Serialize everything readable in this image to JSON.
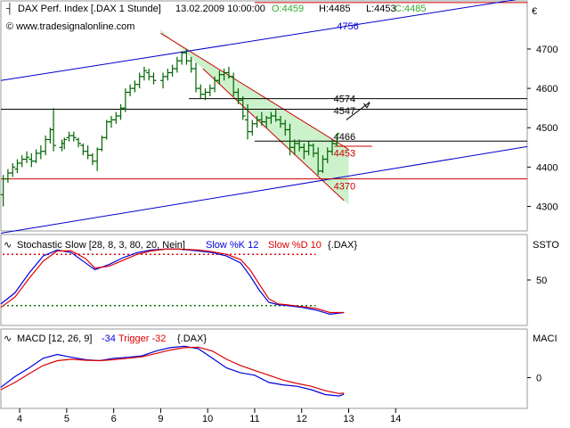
{
  "header": {
    "instrument": "DAX Perf. Index [.DAX  1 Stunde]",
    "datetime": "13.02.2009 10:00:00",
    "open": "O:4459",
    "high": "H:4485",
    "low": "L:4453",
    "close": "C:4485"
  },
  "watermark": "© www.tradesignalonline.com",
  "currency_symbol": "€",
  "colors": {
    "price_bar": "#006400",
    "channel": "#cc0000",
    "channel_fill": "#ccf2cc",
    "trendline": "#0000cc",
    "support": "#cc0000",
    "level": "#000000",
    "close_label": "#33aa33",
    "k_line": "#0000dd",
    "d_line": "#dd0000",
    "ob_dotted": "#dd0000",
    "os_dotted": "#007700"
  },
  "chart_data": [
    {
      "type": "candlestick",
      "panel": "price",
      "ylim": [
        4240,
        4820
      ],
      "yticks": [
        4300,
        4400,
        4500,
        4600,
        4700
      ],
      "xlim": [
        3.6,
        14.8
      ],
      "xticks": [
        {
          "label": "4",
          "x": 4
        },
        {
          "label": "5",
          "x": 5
        },
        {
          "label": "6",
          "x": 6
        },
        {
          "label": "9",
          "x": 7
        },
        {
          "label": "10",
          "x": 8
        },
        {
          "label": "11",
          "x": 9
        },
        {
          "label": "12",
          "x": 10
        },
        {
          "label": "13",
          "x": 11
        },
        {
          "label": "14",
          "x": 12
        }
      ],
      "bars": [
        [
          3.65,
          4330,
          4380,
          4300,
          4370
        ],
        [
          3.75,
          4370,
          4395,
          4360,
          4385
        ],
        [
          3.85,
          4385,
          4410,
          4375,
          4400
        ],
        [
          3.95,
          4395,
          4420,
          4385,
          4410
        ],
        [
          4.05,
          4410,
          4430,
          4400,
          4420
        ],
        [
          4.15,
          4420,
          4440,
          4410,
          4425
        ],
        [
          4.25,
          4420,
          4435,
          4400,
          4415
        ],
        [
          4.35,
          4415,
          4445,
          4410,
          4435
        ],
        [
          4.45,
          4435,
          4455,
          4420,
          4440
        ],
        [
          4.55,
          4440,
          4480,
          4430,
          4470
        ],
        [
          4.65,
          4470,
          4500,
          4460,
          4495
        ],
        [
          4.72,
          4495,
          4550,
          4440,
          4455
        ],
        [
          4.9,
          4450,
          4470,
          4440,
          4460
        ],
        [
          4.95,
          4460,
          4475,
          4445,
          4470
        ],
        [
          5.05,
          4475,
          4490,
          4465,
          4480
        ],
        [
          5.15,
          4480,
          4490,
          4465,
          4475
        ],
        [
          5.25,
          4470,
          4475,
          4450,
          4460
        ],
        [
          5.35,
          4455,
          4460,
          4430,
          4440
        ],
        [
          5.45,
          4440,
          4455,
          4420,
          4430
        ],
        [
          5.55,
          4430,
          4435,
          4405,
          4415
        ],
        [
          5.65,
          4415,
          4450,
          4390,
          4445
        ],
        [
          5.75,
          4445,
          4480,
          4440,
          4475
        ],
        [
          5.85,
          4475,
          4520,
          4470,
          4515
        ],
        [
          5.95,
          4515,
          4530,
          4500,
          4520
        ],
        [
          6.05,
          4520,
          4540,
          4510,
          4530
        ],
        [
          6.15,
          4530,
          4560,
          4520,
          4550
        ],
        [
          6.25,
          4550,
          4600,
          4540,
          4590
        ],
        [
          6.35,
          4590,
          4610,
          4580,
          4600
        ],
        [
          6.45,
          4600,
          4620,
          4590,
          4610
        ],
        [
          6.55,
          4610,
          4640,
          4600,
          4630
        ],
        [
          6.65,
          4630,
          4655,
          4620,
          4645
        ],
        [
          6.75,
          4640,
          4650,
          4620,
          4630
        ],
        [
          6.85,
          4630,
          4640,
          4610,
          4620
        ],
        [
          7.05,
          4620,
          4640,
          4600,
          4630
        ],
        [
          7.15,
          4630,
          4650,
          4620,
          4640
        ],
        [
          7.25,
          4640,
          4660,
          4630,
          4650
        ],
        [
          7.35,
          4650,
          4680,
          4640,
          4670
        ],
        [
          7.45,
          4670,
          4695,
          4660,
          4690
        ],
        [
          7.55,
          4690,
          4700,
          4660,
          4670
        ],
        [
          7.65,
          4670,
          4680,
          4640,
          4650
        ],
        [
          7.75,
          4650,
          4665,
          4590,
          4600
        ],
        [
          7.85,
          4600,
          4610,
          4575,
          4585
        ],
        [
          7.95,
          4585,
          4600,
          4570,
          4590
        ],
        [
          8.05,
          4590,
          4610,
          4580,
          4600
        ],
        [
          8.15,
          4600,
          4630,
          4590,
          4620
        ],
        [
          8.25,
          4620,
          4645,
          4610,
          4635
        ],
        [
          8.35,
          4635,
          4650,
          4620,
          4640
        ],
        [
          8.45,
          4640,
          4655,
          4625,
          4630
        ],
        [
          8.55,
          4630,
          4640,
          4580,
          4590
        ],
        [
          8.65,
          4590,
          4600,
          4560,
          4570
        ],
        [
          8.75,
          4570,
          4580,
          4520,
          4530
        ],
        [
          8.85,
          4520,
          4560,
          4470,
          4490
        ],
        [
          8.95,
          4490,
          4520,
          4480,
          4510
        ],
        [
          9.05,
          4510,
          4530,
          4500,
          4520
        ],
        [
          9.15,
          4520,
          4540,
          4505,
          4515
        ],
        [
          9.25,
          4515,
          4530,
          4500,
          4525
        ],
        [
          9.35,
          4525,
          4540,
          4510,
          4530
        ],
        [
          9.45,
          4530,
          4545,
          4515,
          4520
        ],
        [
          9.55,
          4520,
          4530,
          4500,
          4510
        ],
        [
          9.65,
          4510,
          4520,
          4480,
          4495
        ],
        [
          9.75,
          4495,
          4510,
          4430,
          4450
        ],
        [
          9.85,
          4450,
          4470,
          4430,
          4460
        ],
        [
          9.95,
          4460,
          4470,
          4440,
          4450
        ],
        [
          10.05,
          4450,
          4460,
          4420,
          4440
        ],
        [
          10.15,
          4440,
          4465,
          4430,
          4455
        ],
        [
          10.25,
          4455,
          4460,
          4425,
          4435
        ],
        [
          10.35,
          4435,
          4450,
          4380,
          4390
        ],
        [
          10.45,
          4390,
          4430,
          4385,
          4420
        ],
        [
          10.55,
          4420,
          4450,
          4410,
          4440
        ],
        [
          10.65,
          4440,
          4470,
          4430,
          4460
        ],
        [
          10.75,
          4459,
          4485,
          4453,
          4485
        ]
      ],
      "channel": {
        "upper": [
          [
            7.0,
            4740
          ],
          [
            11.0,
            4445
          ]
        ],
        "lower": [
          [
            7.9,
            4650
          ],
          [
            10.9,
            4315
          ]
        ],
        "end_x": 11.0
      },
      "trendlines": [
        {
          "points": [
            [
              3.6,
              4620
            ],
            [
              14.8,
              4830
            ]
          ],
          "label": "4756",
          "label_x": 10.75,
          "label_y": 4750
        },
        {
          "points": [
            [
              3.6,
              4232
            ],
            [
              14.8,
              4452
            ]
          ],
          "label": "",
          "label_x": 0,
          "label_y": 0
        }
      ],
      "levels": [
        {
          "value": 4574,
          "label": "4574",
          "from_x": 7.6,
          "to_x": 14.8,
          "color_key": "level"
        },
        {
          "value": 4547,
          "label": "4547",
          "from_x": 3.6,
          "to_x": 14.8,
          "color_key": "level"
        },
        {
          "value": 4466,
          "label": "4466",
          "from_x": 9.0,
          "to_x": 14.8,
          "color_key": "level"
        },
        {
          "value": 4453,
          "label": "4453",
          "from_x": 10.7,
          "to_x": 11.5,
          "color_key": "support"
        },
        {
          "value": 4370,
          "label": "4370",
          "from_x": 3.6,
          "to_x": 14.8,
          "color_key": "support"
        }
      ],
      "top_red_line_y": 4818,
      "arrow": {
        "from": [
          10.95,
          4520
        ],
        "to": [
          11.45,
          4565
        ]
      }
    },
    {
      "type": "line",
      "panel": "stochastic",
      "title": "Stochastic Slow [28, 8, 3, 80, 20, Nein]",
      "k_label": "Slow %K 12",
      "d_label": "Slow %D 10",
      "suffix": "{.DAX}",
      "right_label": "SSTO",
      "ylim": [
        0,
        100
      ],
      "yticks": [
        50
      ],
      "overbought": 80,
      "oversold": 20,
      "series": [
        {
          "name": "Slow %K",
          "color_key": "k_line",
          "x": [
            3.6,
            3.9,
            4.2,
            4.5,
            4.8,
            5.1,
            5.4,
            5.6,
            5.9,
            6.2,
            6.5,
            6.8,
            7.1,
            7.4,
            7.8,
            8.1,
            8.4,
            8.7,
            8.9,
            9.1,
            9.3,
            9.5,
            9.7,
            10.0,
            10.3,
            10.6,
            10.9
          ],
          "values": [
            22,
            35,
            58,
            78,
            85,
            82,
            70,
            62,
            68,
            76,
            82,
            85,
            86,
            86,
            84,
            82,
            78,
            70,
            55,
            38,
            24,
            21,
            20,
            18,
            15,
            10,
            12
          ]
        },
        {
          "name": "Slow %D",
          "color_key": "d_line",
          "x": [
            3.6,
            3.9,
            4.2,
            4.5,
            4.8,
            5.1,
            5.4,
            5.6,
            5.9,
            6.2,
            6.5,
            6.8,
            7.1,
            7.4,
            7.8,
            8.1,
            8.4,
            8.7,
            8.9,
            9.1,
            9.3,
            9.5,
            9.7,
            10.0,
            10.3,
            10.6,
            10.9
          ],
          "values": [
            18,
            30,
            52,
            72,
            84,
            84,
            75,
            64,
            66,
            73,
            80,
            84,
            86,
            86,
            85,
            83,
            80,
            74,
            62,
            45,
            28,
            22,
            21,
            19,
            17,
            12,
            12
          ]
        }
      ]
    },
    {
      "type": "line",
      "panel": "macd",
      "title": "MACD [12, 26, 9]",
      "macd_label": "-34",
      "trigger_label": "Trigger -32",
      "suffix": "{.DAX}",
      "right_label": "MACI",
      "ylim": [
        -60,
        95
      ],
      "yticks": [
        0
      ],
      "series": [
        {
          "name": "MACD",
          "color_key": "k_line",
          "x": [
            3.6,
            3.9,
            4.2,
            4.5,
            4.8,
            5.1,
            5.4,
            5.7,
            6.0,
            6.3,
            6.6,
            6.9,
            7.2,
            7.5,
            7.8,
            8.1,
            8.4,
            8.7,
            9.0,
            9.3,
            9.6,
            9.9,
            10.2,
            10.5,
            10.8,
            10.9
          ],
          "values": [
            -20,
            2,
            20,
            40,
            48,
            42,
            37,
            35,
            40,
            42,
            45,
            55,
            62,
            65,
            60,
            40,
            20,
            10,
            5,
            -10,
            -15,
            -18,
            -25,
            -35,
            -38,
            -34
          ]
        },
        {
          "name": "Trigger",
          "color_key": "d_line",
          "x": [
            3.6,
            3.9,
            4.2,
            4.5,
            4.8,
            5.1,
            5.4,
            5.7,
            6.0,
            6.3,
            6.6,
            6.9,
            7.2,
            7.5,
            7.8,
            8.1,
            8.4,
            8.7,
            9.0,
            9.3,
            9.6,
            9.9,
            10.2,
            10.5,
            10.8,
            10.9
          ],
          "values": [
            -25,
            -10,
            8,
            25,
            35,
            38,
            36,
            35,
            37,
            40,
            43,
            50,
            57,
            62,
            63,
            55,
            38,
            25,
            15,
            5,
            -5,
            -12,
            -18,
            -27,
            -33,
            -32
          ]
        }
      ]
    }
  ]
}
